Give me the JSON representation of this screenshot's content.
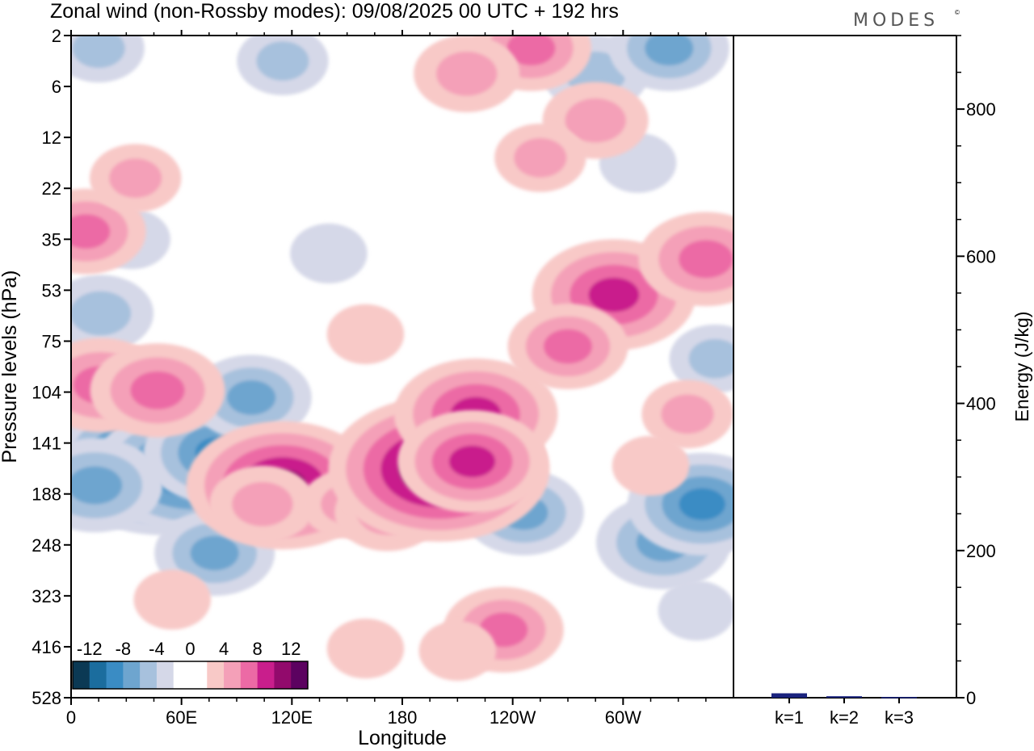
{
  "chart_data": [
    {
      "type": "heatmap",
      "title": "Zonal wind (non-Rossby modes):  09/08/2025  00 UTC  + 192 hrs",
      "brand": "MODES",
      "brand_mark": "©",
      "xlabel": "Longitude",
      "ylabel": "Pressure levels (hPa)",
      "x_ticks": [
        {
          "lon": 0,
          "label": "0"
        },
        {
          "lon": 60,
          "label": "60E"
        },
        {
          "lon": 120,
          "label": "120E"
        },
        {
          "lon": 180,
          "label": "180"
        },
        {
          "lon": 240,
          "label": "120W"
        },
        {
          "lon": 300,
          "label": "60W"
        }
      ],
      "xlim": [
        0,
        360
      ],
      "y_levels": [
        "2",
        "6",
        "12",
        "22",
        "35",
        "53",
        "75",
        "104",
        "141",
        "188",
        "248",
        "323",
        "416",
        "528"
      ],
      "colorbar": {
        "labels": [
          "-12",
          "-8",
          "-4",
          "0",
          "4",
          "8",
          "12"
        ],
        "colors": [
          "#0b3954",
          "#1b6d9e",
          "#3a8cc4",
          "#6ea5cf",
          "#a7c1dd",
          "#d5d8e8",
          "#ffffff",
          "#ffffff",
          "#f8c9c7",
          "#f4a0b8",
          "#ec6aa5",
          "#c91e8c",
          "#920a6c",
          "#5c0260"
        ]
      },
      "features": [
        {
          "lon": 50,
          "level": 159,
          "value": -13
        },
        {
          "lon": 65,
          "level": 165,
          "value": -11
        },
        {
          "lon": 80,
          "level": 150,
          "value": -8
        },
        {
          "lon": 98,
          "level": 108,
          "value": -6
        },
        {
          "lon": 13,
          "level": 180,
          "value": -7
        },
        {
          "lon": 78,
          "level": 260,
          "value": -6
        },
        {
          "lon": 15,
          "level": 3,
          "value": -4
        },
        {
          "lon": 115,
          "level": 4,
          "value": -4
        },
        {
          "lon": 285,
          "level": 5,
          "value": -5
        },
        {
          "lon": 325,
          "level": 3,
          "value": -6
        },
        {
          "lon": 16,
          "level": 63,
          "value": -5
        },
        {
          "lon": 33,
          "level": 35,
          "value": -3
        },
        {
          "lon": 140,
          "level": 40,
          "value": -3
        },
        {
          "lon": 308,
          "level": 17,
          "value": -3
        },
        {
          "lon": 246,
          "level": 210,
          "value": -6
        },
        {
          "lon": 322,
          "level": 245,
          "value": -7
        },
        {
          "lon": 343,
          "level": 200,
          "value": -8
        },
        {
          "lon": 350,
          "level": 85,
          "value": -4
        },
        {
          "lon": 340,
          "level": 350,
          "value": -3
        },
        {
          "lon": 115,
          "level": 180,
          "value": 11
        },
        {
          "lon": 104,
          "level": 200,
          "value": 5
        },
        {
          "lon": 150,
          "level": 200,
          "value": 4
        },
        {
          "lon": 172,
          "level": 210,
          "value": 5
        },
        {
          "lon": 200,
          "level": 165,
          "value": 13
        },
        {
          "lon": 220,
          "level": 120,
          "value": 9
        },
        {
          "lon": 218,
          "level": 158,
          "value": 8
        },
        {
          "lon": 235,
          "level": 385,
          "value": 6
        },
        {
          "lon": 16,
          "level": 100,
          "value": 7
        },
        {
          "lon": 47,
          "level": 103,
          "value": 7
        },
        {
          "lon": 8,
          "level": 33,
          "value": 6
        },
        {
          "lon": 35,
          "level": 20,
          "value": 4
        },
        {
          "lon": 295,
          "level": 55,
          "value": 9
        },
        {
          "lon": 345,
          "level": 42,
          "value": 7
        },
        {
          "lon": 270,
          "level": 78,
          "value": 6
        },
        {
          "lon": 250,
          "level": 3,
          "value": 6
        },
        {
          "lon": 285,
          "level": 10,
          "value": 5
        },
        {
          "lon": 215,
          "level": 5,
          "value": 5
        },
        {
          "lon": 255,
          "level": 16,
          "value": 4
        },
        {
          "lon": 160,
          "level": 72,
          "value": 3
        },
        {
          "lon": 335,
          "level": 120,
          "value": 4
        },
        {
          "lon": 315,
          "level": 162,
          "value": 3
        },
        {
          "lon": 55,
          "level": 330,
          "value": 3
        },
        {
          "lon": 210,
          "level": 425,
          "value": 3
        },
        {
          "lon": 160,
          "level": 420,
          "value": 3
        }
      ]
    },
    {
      "type": "bar",
      "ylabel": "Energy (J/kg)",
      "categories": [
        "k=1",
        "k=2",
        "k=3"
      ],
      "values": [
        6,
        2,
        1
      ],
      "ylim": [
        0,
        900
      ],
      "y_ticks": [
        "0",
        "200",
        "400",
        "600",
        "800"
      ],
      "bar_color": "#1a237e"
    }
  ]
}
